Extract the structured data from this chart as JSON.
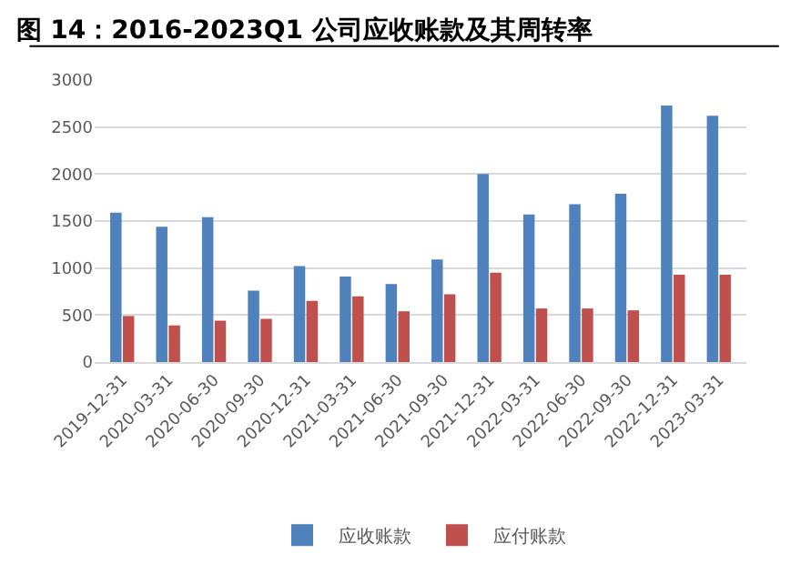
{
  "chart_data": {
    "type": "bar",
    "title": "图 14：2016-2023Q1 公司应收账款及其周转率",
    "categories": [
      "2019-12-31",
      "2020-03-31",
      "2020-06-30",
      "2020-09-30",
      "2020-12-31",
      "2021-03-31",
      "2021-06-30",
      "2021-09-30",
      "2021-12-31",
      "2022-03-31",
      "2022-06-30",
      "2022-09-30",
      "2022-12-31",
      "2023-03-31"
    ],
    "series": [
      {
        "name": "应收账款",
        "color": "#4f81bd",
        "values": [
          1590,
          1440,
          1540,
          760,
          1020,
          910,
          830,
          1090,
          2000,
          1570,
          1680,
          1790,
          2730,
          2620
        ]
      },
      {
        "name": "应付账款",
        "color": "#c0504d",
        "values": [
          490,
          390,
          440,
          460,
          650,
          700,
          540,
          720,
          950,
          570,
          570,
          550,
          930,
          930
        ]
      }
    ],
    "ylim": [
      0,
      3000
    ],
    "yticks": [
      0,
      500,
      1000,
      1500,
      2000,
      2500,
      3000
    ],
    "grid": "y",
    "legend": "bottom"
  }
}
